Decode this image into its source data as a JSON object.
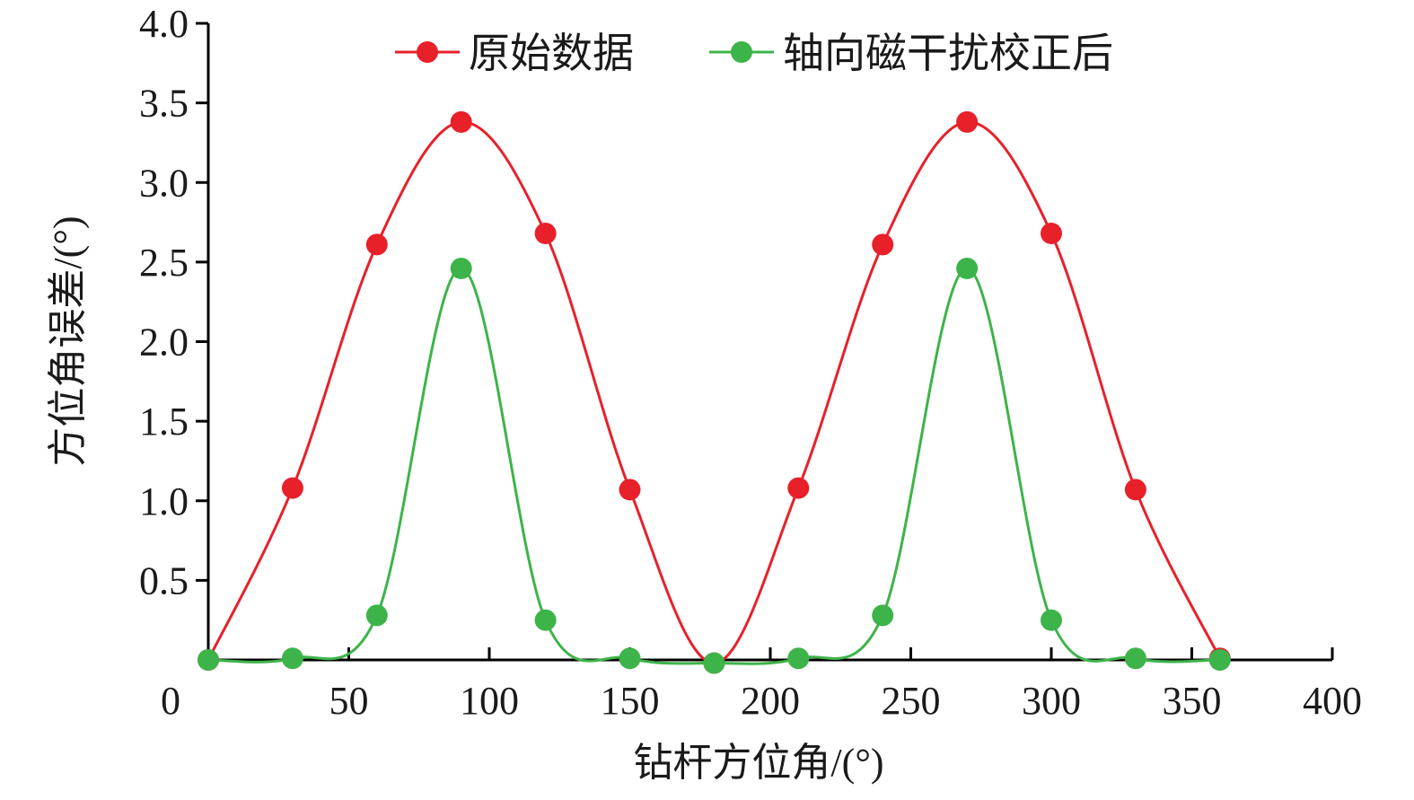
{
  "chart_data": {
    "type": "line",
    "smooth": true,
    "title": "",
    "xlabel": "钻杆方位角/(°)",
    "ylabel": "方位角误差/(°)",
    "xlim": [
      0,
      400
    ],
    "ylim": [
      0,
      4.0
    ],
    "x_ticks": [
      0,
      50,
      100,
      150,
      200,
      250,
      300,
      350,
      400
    ],
    "x_tick_labels": [
      "0",
      "50",
      "100",
      "150",
      "200",
      "250",
      "300",
      "350",
      "400"
    ],
    "y_ticks": [
      0.5,
      1.0,
      1.5,
      2.0,
      2.5,
      3.0,
      3.5,
      4.0
    ],
    "y_tick_labels": [
      "0.5",
      "1.0",
      "1.5",
      "2.0",
      "2.5",
      "3.0",
      "3.5",
      "4.0"
    ],
    "grid": false,
    "legend_position": "top-center",
    "x": [
      0,
      30,
      60,
      90,
      120,
      150,
      180,
      210,
      240,
      270,
      300,
      330,
      360
    ],
    "series": [
      {
        "name": "原始数据",
        "color": "#e8202a",
        "values": [
          0.0,
          1.08,
          2.61,
          3.38,
          2.68,
          1.07,
          -0.02,
          1.08,
          2.61,
          3.38,
          2.68,
          1.07,
          0.01
        ]
      },
      {
        "name": "轴向磁干扰校正后",
        "color": "#3db449",
        "values": [
          0.0,
          0.01,
          0.28,
          2.46,
          0.25,
          0.01,
          -0.02,
          0.01,
          0.28,
          2.46,
          0.25,
          0.01,
          0.0
        ]
      }
    ]
  }
}
